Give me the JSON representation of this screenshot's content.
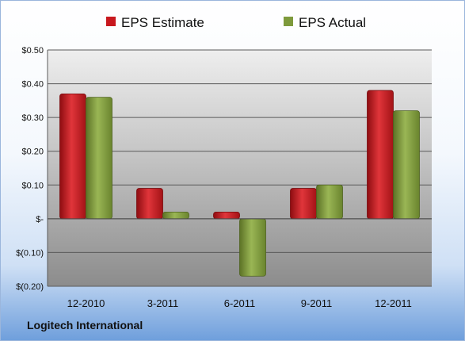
{
  "company": "Logitech International",
  "chart_data": {
    "type": "bar",
    "categories": [
      "12-2010",
      "3-2011",
      "6-2011",
      "9-2011",
      "12-2011"
    ],
    "series": [
      {
        "name": "EPS Estimate",
        "color": "#c8181e",
        "values": [
          0.37,
          0.09,
          0.02,
          0.09,
          0.38
        ]
      },
      {
        "name": "EPS Actual",
        "color": "#7e9a3c",
        "values": [
          0.36,
          0.02,
          -0.17,
          0.1,
          0.32
        ]
      }
    ],
    "ylim": [
      -0.2,
      0.5
    ],
    "yticks": [
      0.5,
      0.4,
      0.3,
      0.2,
      0.1,
      0,
      -0.1,
      -0.2
    ],
    "ytick_labels": [
      "$0.50",
      "$0.40",
      "$0.30",
      "$0.20",
      "$0.10",
      "$-",
      "$(0.10)",
      "$(0.20)"
    ],
    "grid": true,
    "legend": "top"
  }
}
